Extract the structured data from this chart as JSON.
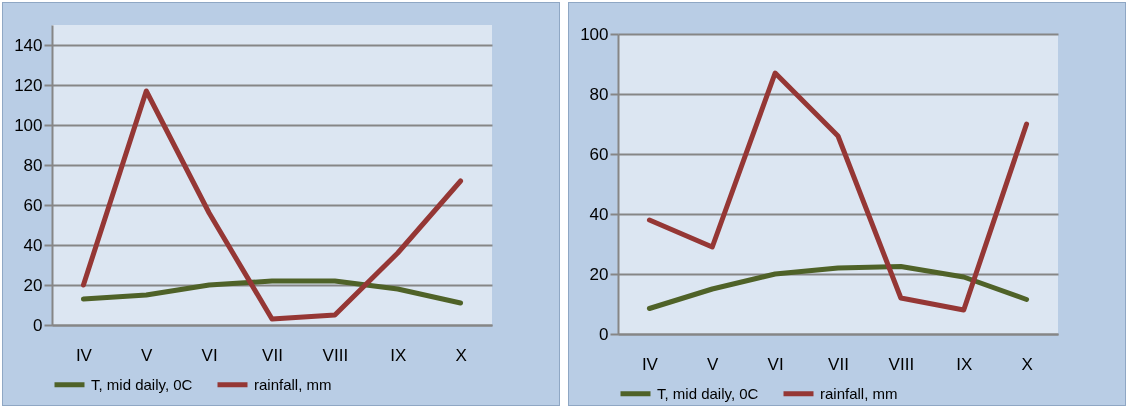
{
  "chart_data": [
    {
      "type": "line",
      "categories": [
        "IV",
        "V",
        "VI",
        "VII",
        "VIII",
        "IX",
        "X"
      ],
      "ylim": [
        0,
        150
      ],
      "yticks": [
        0,
        20,
        40,
        60,
        80,
        100,
        120,
        140
      ],
      "grid": "y",
      "legend": "bottom",
      "series": [
        {
          "name": "T, mid daily, 0C",
          "color": "#4f6228",
          "values": [
            13,
            15,
            20,
            22,
            22,
            18,
            11
          ]
        },
        {
          "name": "rainfall, mm",
          "color": "#953735",
          "values": [
            20,
            117,
            56,
            3,
            5,
            36,
            72
          ]
        }
      ]
    },
    {
      "type": "line",
      "categories": [
        "IV",
        "V",
        "VI",
        "VII",
        "VIII",
        "IX",
        "X"
      ],
      "ylim": [
        0,
        100
      ],
      "yticks": [
        0,
        20,
        40,
        60,
        80,
        100
      ],
      "grid": "y",
      "legend": "bottom",
      "series": [
        {
          "name": "T, mid daily, 0C",
          "color": "#4f6228",
          "values": [
            8.5,
            15,
            20,
            22,
            22.5,
            19,
            11.5
          ]
        },
        {
          "name": "rainfall, mm",
          "color": "#953735",
          "values": [
            38,
            29,
            87,
            66,
            12,
            8,
            70
          ]
        }
      ]
    }
  ]
}
